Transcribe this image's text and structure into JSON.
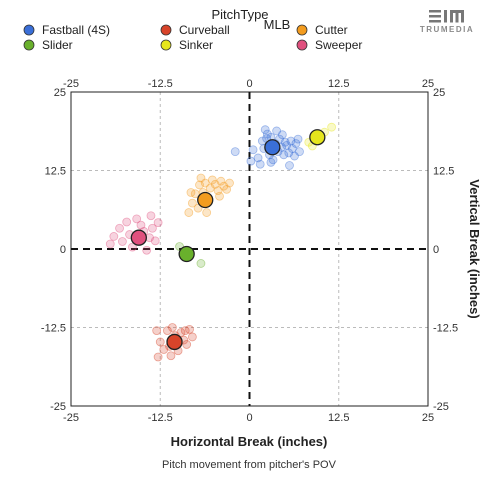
{
  "chart_data": {
    "type": "scatter",
    "legend": {
      "title": "PitchType",
      "subtitle": "MLB",
      "placement": "top-left",
      "items": [
        {
          "label": "Fastball (4S)",
          "color": "#3a6fd8"
        },
        {
          "label": "Curveball",
          "color": "#d8442a"
        },
        {
          "label": "Cutter",
          "color": "#f39c1f"
        },
        {
          "label": "Slider",
          "color": "#69b02c"
        },
        {
          "label": "Sinker",
          "color": "#e6e61c"
        },
        {
          "label": "Sweeper",
          "color": "#e0507e"
        }
      ]
    },
    "xlabel": "Horizontal Break (inches)",
    "ylabel": "Vertical Break (inches)",
    "caption": "Pitch movement from pitcher's POV",
    "xlim": [
      -25,
      25
    ],
    "ylim": [
      -25,
      25
    ],
    "xticks": [
      "-25",
      "-12.5",
      "0",
      "12.5",
      "25"
    ],
    "yticks": [
      "25",
      "12.5",
      "0",
      "-12.5",
      "-25"
    ],
    "grid": true,
    "series": [
      {
        "name": "Fastball (4S)",
        "color": "#3a6fd8",
        "average": [
          3.2,
          16.2
        ],
        "points": [
          [
            0.5,
            15.8
          ],
          [
            1.2,
            14.5
          ],
          [
            1.8,
            17.2
          ],
          [
            2.0,
            16.0
          ],
          [
            2.5,
            18.3
          ],
          [
            2.8,
            15.0
          ],
          [
            3.0,
            17.8
          ],
          [
            3.3,
            14.2
          ],
          [
            3.6,
            16.8
          ],
          [
            4.0,
            15.5
          ],
          [
            4.2,
            17.5
          ],
          [
            4.5,
            16.2
          ],
          [
            4.8,
            15.0
          ],
          [
            5.0,
            17.0
          ],
          [
            5.2,
            16.5
          ],
          [
            5.5,
            15.3
          ],
          [
            5.8,
            17.2
          ],
          [
            6.0,
            16.0
          ],
          [
            6.3,
            14.8
          ],
          [
            6.5,
            16.8
          ],
          [
            7.0,
            15.5
          ],
          [
            2.2,
            19.0
          ],
          [
            3.8,
            18.8
          ],
          [
            1.5,
            13.5
          ],
          [
            0.2,
            14.0
          ],
          [
            3.0,
            13.8
          ],
          [
            4.6,
            18.2
          ],
          [
            6.8,
            17.5
          ],
          [
            -2.0,
            15.5
          ],
          [
            2.4,
            17.6
          ],
          [
            5.6,
            13.3
          ]
        ]
      },
      {
        "name": "Curveball",
        "color": "#d8442a",
        "average": [
          -10.5,
          -14.8
        ],
        "points": [
          [
            -13.0,
            -13.0
          ],
          [
            -12.5,
            -14.8
          ],
          [
            -12.0,
            -16.0
          ],
          [
            -11.5,
            -13.0
          ],
          [
            -11.2,
            -15.5
          ],
          [
            -10.8,
            -12.5
          ],
          [
            -10.4,
            -13.8
          ],
          [
            -10.0,
            -16.2
          ],
          [
            -9.6,
            -13.3
          ],
          [
            -9.2,
            -14.5
          ],
          [
            -8.8,
            -15.2
          ],
          [
            -8.4,
            -12.8
          ],
          [
            -12.8,
            -17.2
          ],
          [
            -11.0,
            -17.0
          ],
          [
            -9.0,
            -13.0
          ],
          [
            -8.0,
            -14.0
          ]
        ]
      },
      {
        "name": "Cutter",
        "color": "#f39c1f",
        "average": [
          -6.2,
          7.8
        ],
        "points": [
          [
            -8.5,
            5.8
          ],
          [
            -8.0,
            7.3
          ],
          [
            -7.6,
            8.8
          ],
          [
            -7.2,
            6.5
          ],
          [
            -7.0,
            10.2
          ],
          [
            -6.8,
            11.3
          ],
          [
            -6.5,
            9.0
          ],
          [
            -6.2,
            10.5
          ],
          [
            -5.9,
            7.8
          ],
          [
            -5.5,
            9.7
          ],
          [
            -5.2,
            11.0
          ],
          [
            -4.8,
            10.3
          ],
          [
            -4.4,
            9.3
          ],
          [
            -4.0,
            10.8
          ],
          [
            -3.6,
            10.0
          ],
          [
            -3.2,
            9.5
          ],
          [
            -2.8,
            10.5
          ],
          [
            -8.2,
            9.0
          ],
          [
            -6.0,
            5.8
          ],
          [
            -4.2,
            8.4
          ]
        ]
      },
      {
        "name": "Slider",
        "color": "#69b02c",
        "average": [
          -8.8,
          -0.8
        ],
        "points": [
          [
            -6.8,
            -2.3
          ],
          [
            -9.8,
            0.4
          ]
        ]
      },
      {
        "name": "Sinker",
        "color": "#e6e61c",
        "average": [
          9.5,
          17.8
        ],
        "points": [
          [
            8.3,
            17.0
          ],
          [
            10.5,
            18.6
          ],
          [
            11.5,
            19.4
          ],
          [
            8.8,
            16.4
          ]
        ]
      },
      {
        "name": "Sweeper",
        "color": "#e0507e",
        "average": [
          -15.5,
          1.8
        ],
        "points": [
          [
            -19.5,
            0.8
          ],
          [
            -19.0,
            2.0
          ],
          [
            -18.2,
            3.3
          ],
          [
            -17.8,
            1.2
          ],
          [
            -17.2,
            4.3
          ],
          [
            -16.8,
            2.3
          ],
          [
            -16.4,
            0.3
          ],
          [
            -15.8,
            4.8
          ],
          [
            -15.2,
            3.8
          ],
          [
            -14.8,
            2.8
          ],
          [
            -14.4,
            -0.2
          ],
          [
            -14.0,
            1.8
          ],
          [
            -13.8,
            5.3
          ],
          [
            -13.6,
            3.3
          ],
          [
            -13.2,
            1.3
          ],
          [
            -12.8,
            4.2
          ]
        ]
      }
    ]
  },
  "logo": {
    "text": "TRUMEDIA"
  }
}
